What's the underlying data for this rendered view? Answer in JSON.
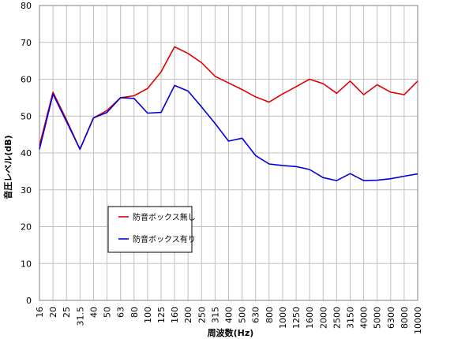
{
  "chart_data": {
    "type": "line",
    "title": "",
    "xlabel": "周波数(Hz)",
    "ylabel": "音圧レベル(dB)",
    "ylim": [
      0,
      80
    ],
    "yticks": [
      0,
      10,
      20,
      30,
      40,
      50,
      60,
      70,
      80
    ],
    "grid": true,
    "legend_position": "lower-left",
    "categories": [
      "16",
      "20",
      "25",
      "31.5",
      "40",
      "50",
      "63",
      "80",
      "100",
      "125",
      "160",
      "200",
      "250",
      "315",
      "400",
      "500",
      "630",
      "800",
      "1000",
      "1250",
      "1600",
      "2000",
      "2500",
      "3150",
      "4000",
      "5000",
      "6300",
      "8000",
      "10000"
    ],
    "series": [
      {
        "name": "防音ボックス無し",
        "color": "#e00000",
        "values": [
          42,
          56.5,
          49,
          41,
          49.5,
          51.5,
          55,
          55.5,
          57.5,
          62,
          68.8,
          67,
          64.5,
          60.8,
          59,
          57.2,
          55.2,
          53.8,
          56,
          58,
          60,
          58.8,
          56.2,
          59.5,
          55.8,
          58.5,
          56.5,
          55.8,
          59.5
        ]
      },
      {
        "name": "防音ボックス有り",
        "color": "#0000dd",
        "values": [
          41,
          56,
          48.5,
          41,
          49.5,
          51,
          55,
          54.8,
          50.8,
          51,
          58.3,
          56.8,
          52.5,
          48,
          43.2,
          44,
          39.3,
          37,
          36.6,
          36.3,
          35.5,
          33.3,
          32.5,
          34.4,
          32.5,
          32.6,
          33,
          33.7,
          34.3
        ]
      }
    ]
  }
}
